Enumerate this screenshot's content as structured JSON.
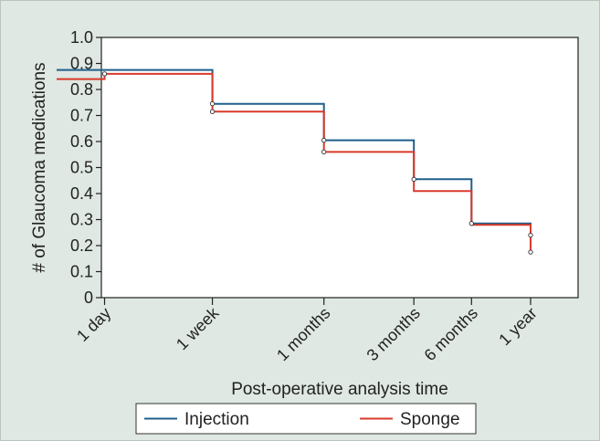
{
  "chart_data": {
    "type": "line",
    "step": true,
    "xlabel": "Post-operative analysis time",
    "ylabel": "# of Glaucoma medications",
    "ylim": [
      0,
      1.0
    ],
    "yticks": [
      0,
      0.1,
      0.2,
      0.3,
      0.4,
      0.5,
      0.6,
      0.7,
      0.8,
      0.9,
      1.0
    ],
    "ytick_labels": [
      "0",
      "0.1",
      "0.2",
      "0.3",
      "0.4",
      "0.5",
      "0.6",
      "0.7",
      "0.8",
      "0.9",
      "1.0"
    ],
    "xlim_days": [
      0,
      410
    ],
    "xticks_days": [
      1,
      7,
      30,
      90,
      180,
      365
    ],
    "xtick_labels": [
      "1 day",
      "1 week",
      "1 months",
      "3 months",
      "6 months",
      "1 year"
    ],
    "series": [
      {
        "name": "Injection",
        "color": "#1f5f8b",
        "points": [
          [
            0,
            0.875
          ],
          [
            7,
            0.875
          ],
          [
            7,
            0.745
          ],
          [
            30,
            0.745
          ],
          [
            30,
            0.605
          ],
          [
            90,
            0.605
          ],
          [
            90,
            0.455
          ],
          [
            180,
            0.455
          ],
          [
            180,
            0.285
          ],
          [
            365,
            0.285
          ],
          [
            365,
            0.24
          ]
        ]
      },
      {
        "name": "Sponge",
        "color": "#d93a2b",
        "points": [
          [
            0,
            0.84
          ],
          [
            1,
            0.84
          ],
          [
            1,
            0.86
          ],
          [
            7,
            0.86
          ],
          [
            7,
            0.715
          ],
          [
            30,
            0.715
          ],
          [
            30,
            0.56
          ],
          [
            90,
            0.56
          ],
          [
            90,
            0.41
          ],
          [
            180,
            0.41
          ],
          [
            180,
            0.28
          ],
          [
            365,
            0.28
          ],
          [
            365,
            0.175
          ]
        ]
      }
    ],
    "markers": [
      [
        1,
        0.86
      ],
      [
        7,
        0.745
      ],
      [
        7,
        0.715
      ],
      [
        30,
        0.605
      ],
      [
        30,
        0.56
      ],
      [
        90,
        0.455
      ],
      [
        180,
        0.285
      ],
      [
        365,
        0.24
      ],
      [
        365,
        0.175
      ]
    ],
    "legend": {
      "position": "bottom",
      "entries": [
        "Injection",
        "Sponge"
      ]
    },
    "grid": false,
    "colors": {
      "background": "#dfe8e2",
      "plot_background": "#ffffff",
      "axis": "#222222"
    }
  }
}
